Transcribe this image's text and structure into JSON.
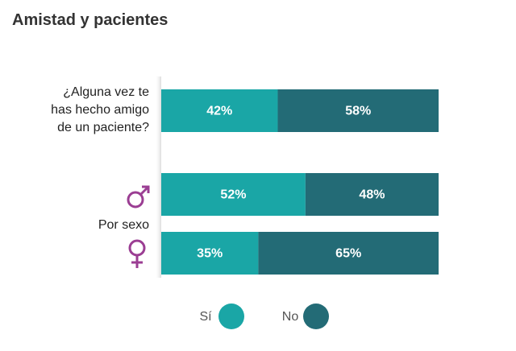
{
  "chart_data": {
    "type": "stacked-bar-horizontal",
    "title": "Amistad y pacientes",
    "categories": [
      "¿Alguna vez te has hecho amigo de un paciente?",
      null,
      null
    ],
    "group_label": "Por sexo",
    "series": [
      {
        "name": "Sí",
        "color": "#1aa6a6",
        "values": [
          42,
          52,
          35
        ],
        "value_labels": [
          "42%",
          "52%",
          "35%"
        ]
      },
      {
        "name": "No",
        "color": "#236b76",
        "values": [
          58,
          48,
          65
        ],
        "value_labels": [
          "58%",
          "48%",
          "65%"
        ]
      }
    ]
  }
}
